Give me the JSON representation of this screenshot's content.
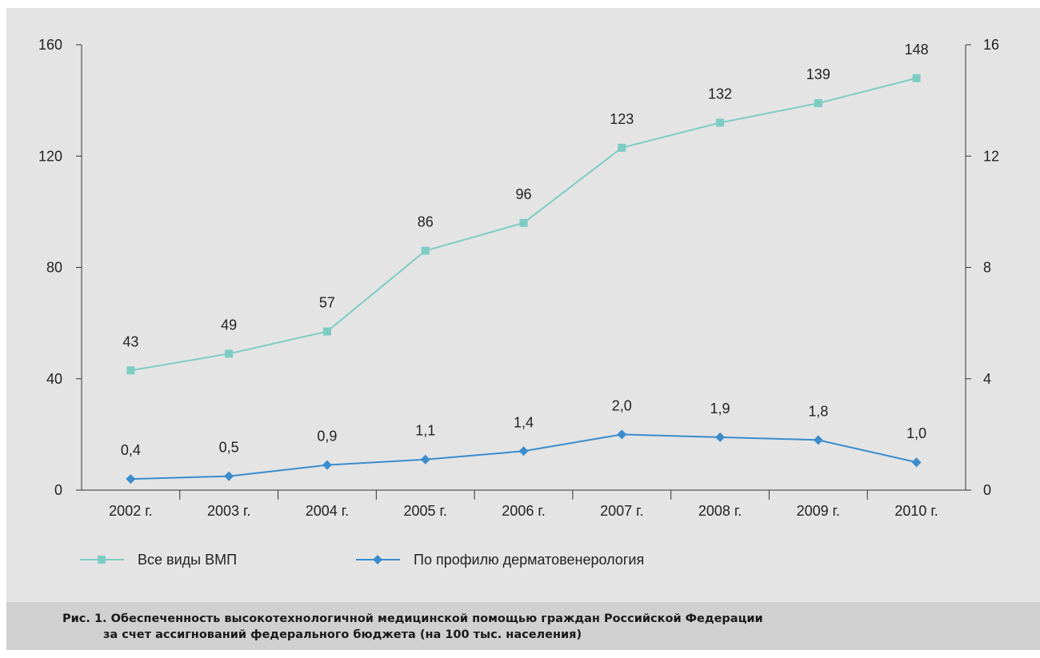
{
  "chart_data": {
    "type": "line",
    "categories": [
      "2002 г.",
      "2003 г.",
      "2004 г.",
      "2005 г.",
      "2006 г.",
      "2007 г.",
      "2008 г.",
      "2009 г.",
      "2010 г."
    ],
    "y_left": {
      "range": [
        0,
        160
      ],
      "ticks": [
        "0",
        "40",
        "80",
        "120",
        "160"
      ]
    },
    "y_right": {
      "range": [
        0,
        16
      ],
      "ticks": [
        "0",
        "4",
        "8",
        "12",
        "16"
      ]
    },
    "series": [
      {
        "name": "Все виды ВМП",
        "axis": "left",
        "marker": "square",
        "color": "#7dccc4",
        "values": [
          43,
          49,
          57,
          86,
          96,
          123,
          132,
          139,
          148
        ],
        "labels": [
          "43",
          "49",
          "57",
          "86",
          "96",
          "123",
          "132",
          "139",
          "148"
        ]
      },
      {
        "name": "По профилю дерматовенерология",
        "axis": "right",
        "marker": "diamond",
        "color": "#3a8ccc",
        "values": [
          0.4,
          0.5,
          0.9,
          1.1,
          1.4,
          2.0,
          1.9,
          1.8,
          1.0
        ],
        "labels": [
          "0,4",
          "0,5",
          "0,9",
          "1,1",
          "1,4",
          "2,0",
          "1,9",
          "1,8",
          "1,0"
        ]
      }
    ],
    "grid": false,
    "legend_position": "bottom-left"
  },
  "caption": {
    "line1": "Рис. 1. Обеспеченность высокотехнологичной медицинской помощью граждан Российской Федерации",
    "line2": "за счет ассигнований федерального бюджета (на 100 тыс. населения)"
  }
}
